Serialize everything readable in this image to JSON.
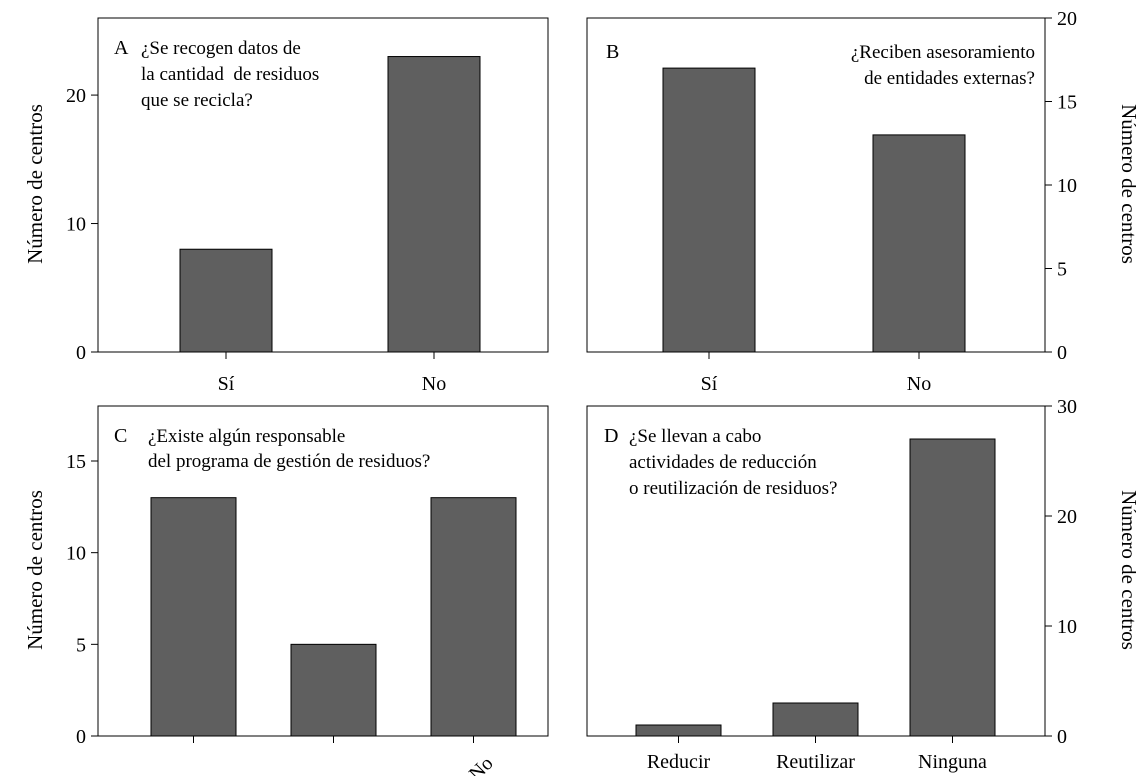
{
  "colors": {
    "bar": "#5f5f5f",
    "bar_stroke": "#000000",
    "axis": "#000000",
    "background": "#ffffff"
  },
  "chart_data": [
    {
      "panel": "A",
      "type": "bar",
      "question": [
        "¿Se recogen datos de",
        "la cantidad  de residuos",
        "que se recicla?"
      ],
      "categories": [
        "Sí",
        "No"
      ],
      "values": [
        8,
        23
      ],
      "ylabel": "Número de centros",
      "ylim": [
        0,
        26
      ],
      "yticks": [
        0,
        10,
        20
      ],
      "axis_side": "left",
      "grid": false,
      "xtick_rotated": false
    },
    {
      "panel": "B",
      "type": "bar",
      "question": [
        "¿Reciben asesoramiento",
        "de entidades externas?"
      ],
      "categories": [
        "Sí",
        "No"
      ],
      "values": [
        17,
        13
      ],
      "ylabel": "Número de centros",
      "ylim": [
        0,
        20
      ],
      "yticks": [
        0,
        5,
        10,
        15,
        20
      ],
      "axis_side": "right",
      "grid": false,
      "xtick_rotated": false
    },
    {
      "panel": "C",
      "type": "bar",
      "question": [
        "¿Existe algún responsable",
        "del programa de gestión de residuos?"
      ],
      "categories": [
        "",
        "",
        "No"
      ],
      "values": [
        13,
        5,
        13
      ],
      "ylabel": "Número de centros",
      "ylim": [
        0,
        18
      ],
      "yticks": [
        0,
        5,
        10,
        15
      ],
      "axis_side": "left",
      "grid": false,
      "xtick_rotated": true
    },
    {
      "panel": "D",
      "type": "bar",
      "question": [
        "¿Se llevan a cabo",
        "actividades de reducción",
        "o reutilización de residuos?"
      ],
      "categories": [
        "Reducir",
        "Reutilizar",
        "Ninguna"
      ],
      "values": [
        1,
        3,
        27
      ],
      "ylabel": "Número de centros",
      "ylim": [
        0,
        30
      ],
      "yticks": [
        0,
        10,
        20,
        30
      ],
      "axis_side": "right",
      "grid": false,
      "xtick_rotated": false
    }
  ]
}
